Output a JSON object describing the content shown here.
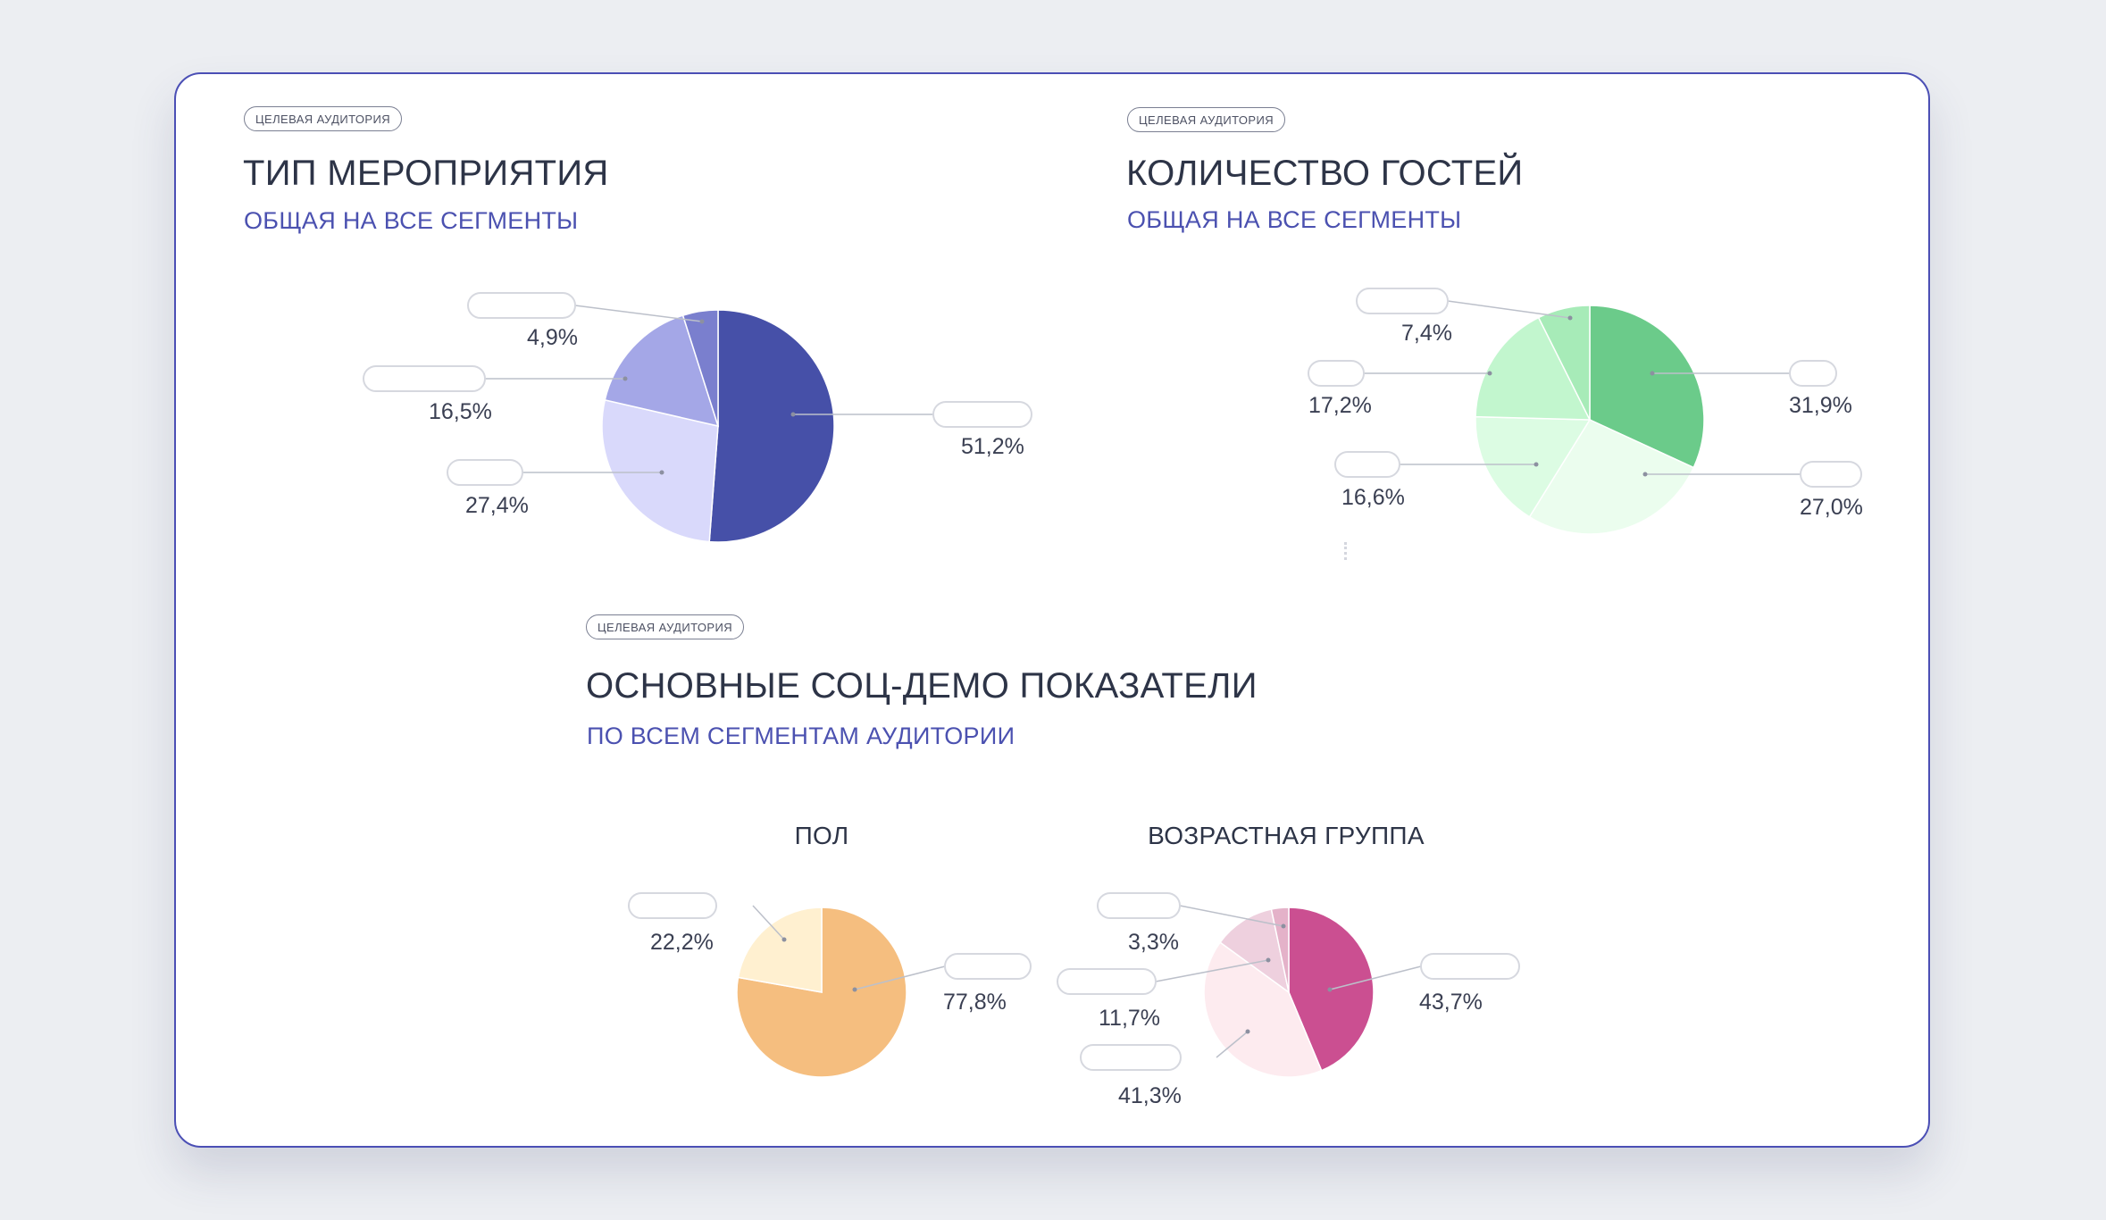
{
  "colors": {
    "border": "#4b4fb5",
    "subtitle": "#4b51b0",
    "label_line": "#bcc0ca",
    "pill_border": "#d6d8df"
  },
  "sections": {
    "event_type": {
      "tag": "Целевая аудитория",
      "title": "ТИП МЕРОПРИЯТИЯ",
      "subtitle": "ОБЩАЯ НА ВСЕ СЕГМЕНТЫ"
    },
    "guest_count": {
      "tag": "Целевая аудитория",
      "title": "КОЛИЧЕСТВО ГОСТЕЙ",
      "subtitle": "ОБЩАЯ НА ВСЕ СЕГМЕНТЫ"
    },
    "socdem": {
      "tag": "Целевая аудитория",
      "title": "ОСНОВНЫЕ СОЦ-ДЕМО ПОКАЗАТЕЛИ",
      "subtitle": "ПО ВСЕМ СЕГМЕНТАМ АУДИТОРИИ",
      "gender_title": "ПОЛ",
      "age_title": "ВОЗРАСТНАЯ ГРУППА"
    }
  },
  "chart_data": [
    {
      "id": "event_type",
      "type": "pie",
      "title": "ТИП МЕРОПРИЯТИЯ",
      "start_angle": 0,
      "series": [
        {
          "value": 51.2,
          "label": "51,2%",
          "color": "#4650a8"
        },
        {
          "value": 27.4,
          "label": "27,4%",
          "color": "#d9d9fb"
        },
        {
          "value": 16.5,
          "label": "16,5%",
          "color": "#a4a7e7"
        },
        {
          "value": 4.9,
          "label": "4,9%",
          "color": "#7a7fce"
        }
      ]
    },
    {
      "id": "guest_count",
      "type": "pie",
      "title": "КОЛИЧЕСТВО ГОСТЕЙ",
      "start_angle": 0,
      "series": [
        {
          "value": 31.9,
          "label": "31,9%",
          "color": "#6bcb8a"
        },
        {
          "value": 27.0,
          "label": "27,0%",
          "color": "#ebfdee"
        },
        {
          "value": 16.6,
          "label": "16,6%",
          "color": "#dcfce3"
        },
        {
          "value": 17.2,
          "label": "17,2%",
          "color": "#c2f6ce"
        },
        {
          "value": 7.4,
          "label": "7,4%",
          "color": "#a7ebb8"
        }
      ]
    },
    {
      "id": "gender",
      "type": "pie",
      "title": "ПОЛ",
      "start_angle": 0,
      "series": [
        {
          "value": 77.8,
          "label": "77,8%",
          "color": "#f5be7f"
        },
        {
          "value": 22.2,
          "label": "22,2%",
          "color": "#fff0d0"
        }
      ]
    },
    {
      "id": "age",
      "type": "pie",
      "title": "ВОЗРАСТНАЯ ГРУППА",
      "start_angle": 0,
      "series": [
        {
          "value": 43.7,
          "label": "43,7%",
          "color": "#cb4f91"
        },
        {
          "value": 41.3,
          "label": "41,3%",
          "color": "#fdebef"
        },
        {
          "value": 11.7,
          "label": "11,7%",
          "color": "#eed0de"
        },
        {
          "value": 3.3,
          "label": "3,3%",
          "color": "#e4b2c9"
        }
      ]
    }
  ]
}
